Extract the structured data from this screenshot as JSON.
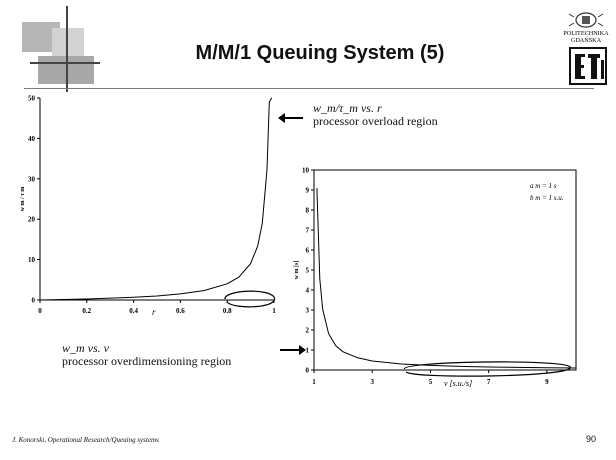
{
  "slide": {
    "title": "M/M/1 Queuing System (5)",
    "footer": "J. Konorski, Operational Research/Queuing systems",
    "page_number": "90",
    "logo_text": [
      "POLITECHNIKA",
      "GDAŃSKA"
    ]
  },
  "annotations": {
    "top": {
      "line1": "w_m/τ_m vs. r",
      "line2": "processor overload region"
    },
    "bottom": {
      "line1": "w_m vs. v",
      "line2": "processor overdimensioning region"
    }
  },
  "chart_data": [
    {
      "type": "line",
      "title": "",
      "xlabel": "r",
      "ylabel": "w m / τ m",
      "xlim": [
        0,
        1
      ],
      "ylim": [
        0,
        50
      ],
      "x_ticks": [
        "0",
        "0.2",
        "0.4",
        "0.6",
        "0.8",
        "1"
      ],
      "y_ticks": [
        "0",
        "10",
        "20",
        "30",
        "40",
        "50"
      ],
      "grid": false,
      "x": [
        0,
        0.2,
        0.4,
        0.5,
        0.6,
        0.7,
        0.8,
        0.85,
        0.9,
        0.93,
        0.95,
        0.97,
        0.98,
        0.99
      ],
      "y": [
        0,
        0.25,
        0.67,
        1.0,
        1.5,
        2.33,
        4.0,
        5.67,
        9.0,
        13.3,
        19.0,
        32.3,
        49.0,
        50
      ],
      "highlight_region": {
        "shape": "ellipse",
        "x_from": 0.79,
        "x_to": 1.0
      }
    },
    {
      "type": "line",
      "title": "",
      "xlabel": "v [s.u./s]",
      "ylabel": "w m [s]",
      "xlim": [
        1,
        10
      ],
      "ylim": [
        0,
        10
      ],
      "x_ticks": [
        "1",
        "3",
        "5",
        "7",
        "9"
      ],
      "y_ticks": [
        "0",
        "1",
        "2",
        "3",
        "4",
        "5",
        "6",
        "7",
        "8",
        "9",
        "10"
      ],
      "grid": false,
      "legend_text": [
        "a m = 1 s",
        "b m = 1 s.u."
      ],
      "x": [
        1.1,
        1.2,
        1.3,
        1.5,
        1.75,
        2,
        2.5,
        3,
        4,
        5,
        6,
        7,
        8,
        9,
        10
      ],
      "y": [
        9.09,
        4.55,
        3.03,
        1.82,
        1.21,
        0.91,
        0.61,
        0.45,
        0.3,
        0.23,
        0.18,
        0.15,
        0.13,
        0.11,
        0.1
      ],
      "highlight_region": {
        "shape": "ellipse",
        "x_from": 4.1,
        "x_to": 9.8
      }
    }
  ]
}
